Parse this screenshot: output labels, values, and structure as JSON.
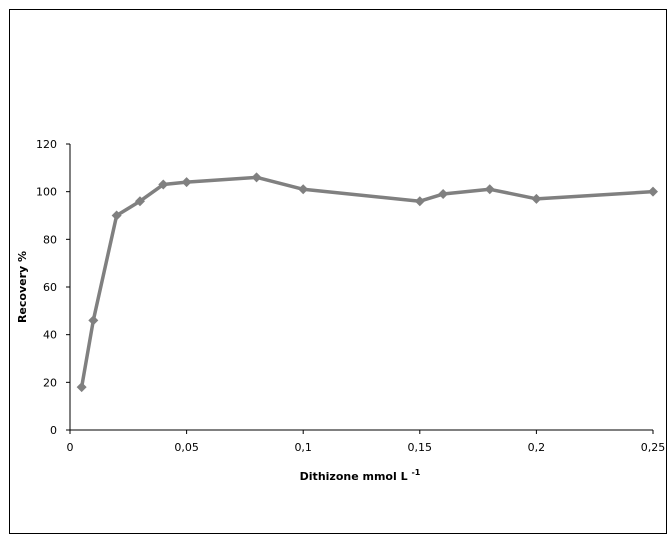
{
  "chart_data": {
    "type": "line",
    "title": "",
    "xlabel": "Dithizone mmol L",
    "xlabel_superscript": "-1",
    "ylabel": "Recovery %",
    "xlim": [
      0,
      0.25
    ],
    "ylim": [
      0,
      120
    ],
    "x_ticks": [
      0,
      0.05,
      0.1,
      0.15,
      0.2,
      0.25
    ],
    "x_tick_labels": [
      "0",
      "0,05",
      "0,1",
      "0,15",
      "0,2",
      "0,25"
    ],
    "y_ticks": [
      0,
      20,
      40,
      60,
      80,
      100,
      120
    ],
    "y_tick_labels": [
      "0",
      "20",
      "40",
      "60",
      "80",
      "100",
      "120"
    ],
    "grid": false,
    "legend": "none",
    "series": [
      {
        "color": "#808080",
        "marker": "diamond",
        "points": [
          {
            "x": 0.005,
            "y": 18
          },
          {
            "x": 0.01,
            "y": 46
          },
          {
            "x": 0.02,
            "y": 90
          },
          {
            "x": 0.03,
            "y": 96
          },
          {
            "x": 0.04,
            "y": 103
          },
          {
            "x": 0.05,
            "y": 104
          },
          {
            "x": 0.08,
            "y": 106
          },
          {
            "x": 0.1,
            "y": 101
          },
          {
            "x": 0.15,
            "y": 96
          },
          {
            "x": 0.16,
            "y": 99
          },
          {
            "x": 0.18,
            "y": 101
          },
          {
            "x": 0.2,
            "y": 97
          },
          {
            "x": 0.25,
            "y": 100
          }
        ]
      }
    ]
  }
}
